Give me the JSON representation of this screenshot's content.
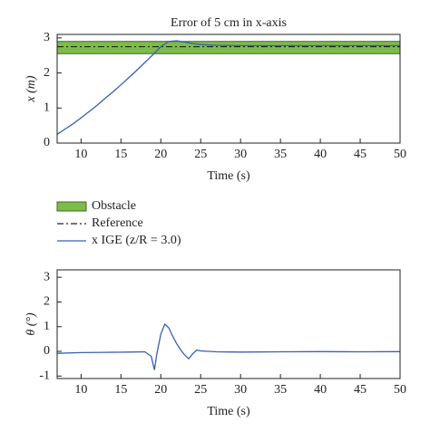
{
  "chart_data": [
    {
      "type": "line",
      "title": "Error of 5 cm in x-axis",
      "xlabel": "Time (s)",
      "ylabel": "x (m)",
      "xlim": [
        7,
        50
      ],
      "ylim": [
        0,
        3.1
      ],
      "xticks": [
        10,
        15,
        20,
        25,
        30,
        35,
        40,
        45,
        50
      ],
      "yticks": [
        0,
        1,
        2,
        3
      ],
      "obstacle": {
        "name": "Obstacle",
        "color": "#7dbb4a",
        "range": [
          2.55,
          2.9
        ]
      },
      "reference": {
        "name": "Reference",
        "color": "#222222",
        "value": 2.75
      },
      "x": [
        7,
        8,
        9,
        10,
        11,
        12,
        13,
        14,
        15,
        16,
        17,
        18,
        19,
        20,
        21,
        22,
        23,
        24,
        25,
        27,
        30,
        35,
        40,
        45,
        50
      ],
      "series": [
        {
          "name": "x IGE (z/R = 3.0)",
          "color": "#3a5fb0",
          "values": [
            0.25,
            0.4,
            0.55,
            0.72,
            0.9,
            1.08,
            1.27,
            1.46,
            1.66,
            1.87,
            2.08,
            2.3,
            2.52,
            2.75,
            2.9,
            2.92,
            2.88,
            2.84,
            2.81,
            2.79,
            2.78,
            2.78,
            2.78,
            2.78,
            2.78
          ]
        }
      ]
    },
    {
      "type": "line",
      "xlabel": "Time (s)",
      "ylabel": "θ (°)",
      "xlim": [
        7,
        50
      ],
      "ylim": [
        -1.1,
        3.3
      ],
      "xticks": [
        10,
        15,
        20,
        25,
        30,
        35,
        40,
        45,
        50
      ],
      "yticks": [
        -1,
        0,
        1,
        2,
        3
      ],
      "x": [
        7,
        10,
        13,
        16,
        18,
        18.8,
        19.2,
        19.5,
        20,
        20.5,
        21,
        21.5,
        22,
        22.5,
        23,
        23.5,
        24,
        24.5,
        25,
        27,
        30,
        35,
        40,
        45,
        50
      ],
      "series": [
        {
          "name": "θ",
          "color": "#3a5fb0",
          "values": [
            -0.08,
            -0.05,
            -0.04,
            -0.03,
            -0.02,
            -0.2,
            -0.75,
            -0.1,
            0.7,
            1.1,
            0.95,
            0.6,
            0.3,
            0.05,
            -0.15,
            -0.3,
            -0.1,
            0.05,
            0.02,
            -0.02,
            -0.03,
            -0.02,
            -0.01,
            -0.02,
            -0.01
          ]
        }
      ]
    }
  ]
}
